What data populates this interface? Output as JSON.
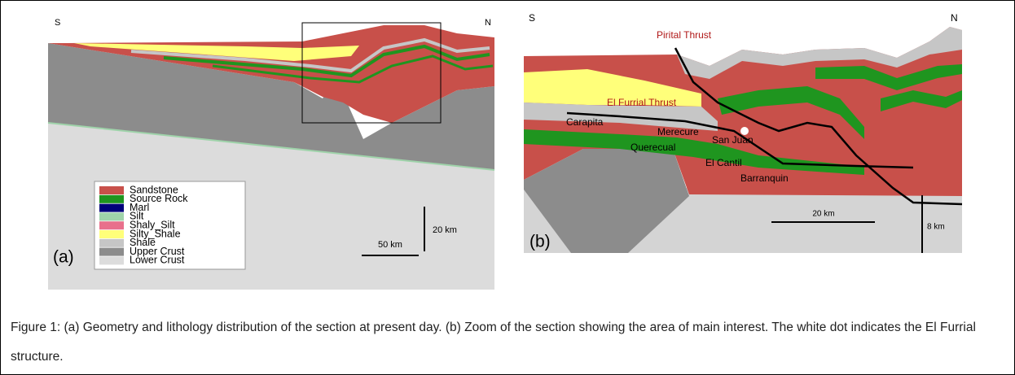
{
  "panel_a": {
    "south": "S",
    "north": "N",
    "legend": [
      {
        "label": "Sandstone",
        "color": "#c8504a"
      },
      {
        "label": "Source Rock",
        "color": "#1f951f"
      },
      {
        "label": "Marl",
        "color": "#00007a"
      },
      {
        "label": "Silt",
        "color": "#9fd3aa"
      },
      {
        "label": "Shaly_Silt",
        "color": "#e8708c"
      },
      {
        "label": "Silty_Shale",
        "color": "#ffff7a"
      },
      {
        "label": "Shale",
        "color": "#c6c6c6"
      },
      {
        "label": "Upper Crust",
        "color": "#8c8c8c"
      },
      {
        "label": "Lower Crust",
        "color": "#dcdcdc"
      }
    ],
    "vertical_scale": "20 km",
    "horizontal_scale": "50 km",
    "tag": "(a)"
  },
  "panel_b": {
    "south": "S",
    "north": "N",
    "thrusts": [
      "Pirital Thrust",
      "El Furrial Thrust"
    ],
    "formations": [
      "Carapita",
      "Merecure",
      "San Juan",
      "Querecual",
      "El Cantil",
      "Barranquin"
    ],
    "horizontal_scale": "20 km",
    "vertical_scale": "8 km",
    "tag": "(b)"
  },
  "caption": "Figure 1: (a) Geometry and lithology distribution of the section at present day.  (b) Zoom of the section showing the area of main interest. The white dot indicates the El Furrial structure."
}
